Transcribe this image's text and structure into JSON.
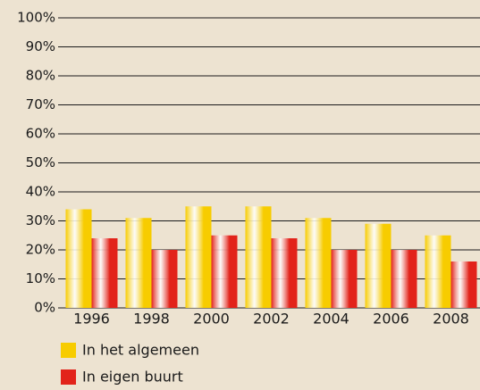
{
  "chart_data": {
    "type": "bar",
    "categories": [
      "1996",
      "1998",
      "2000",
      "2002",
      "2004",
      "2006",
      "2008"
    ],
    "series": [
      {
        "name": "In het algemeen",
        "color": "#f7cc00",
        "values": [
          34,
          31,
          35,
          35,
          31,
          29,
          25
        ]
      },
      {
        "name": "In eigen buurt",
        "color": "#e2231a",
        "values": [
          24,
          20,
          25,
          24,
          20,
          20,
          16
        ]
      }
    ],
    "ylim": [
      0,
      100
    ],
    "yticks": [
      {
        "value": 0,
        "label": "0%"
      },
      {
        "value": 10,
        "label": "10%"
      },
      {
        "value": 20,
        "label": "20%"
      },
      {
        "value": 30,
        "label": "30%"
      },
      {
        "value": 40,
        "label": "40%"
      },
      {
        "value": 50,
        "label": "50%"
      },
      {
        "value": 60,
        "label": "60%"
      },
      {
        "value": 70,
        "label": "70%"
      },
      {
        "value": 80,
        "label": "80%"
      },
      {
        "value": 90,
        "label": "90%"
      },
      {
        "value": 100,
        "label": "100%"
      }
    ],
    "grid": true
  }
}
